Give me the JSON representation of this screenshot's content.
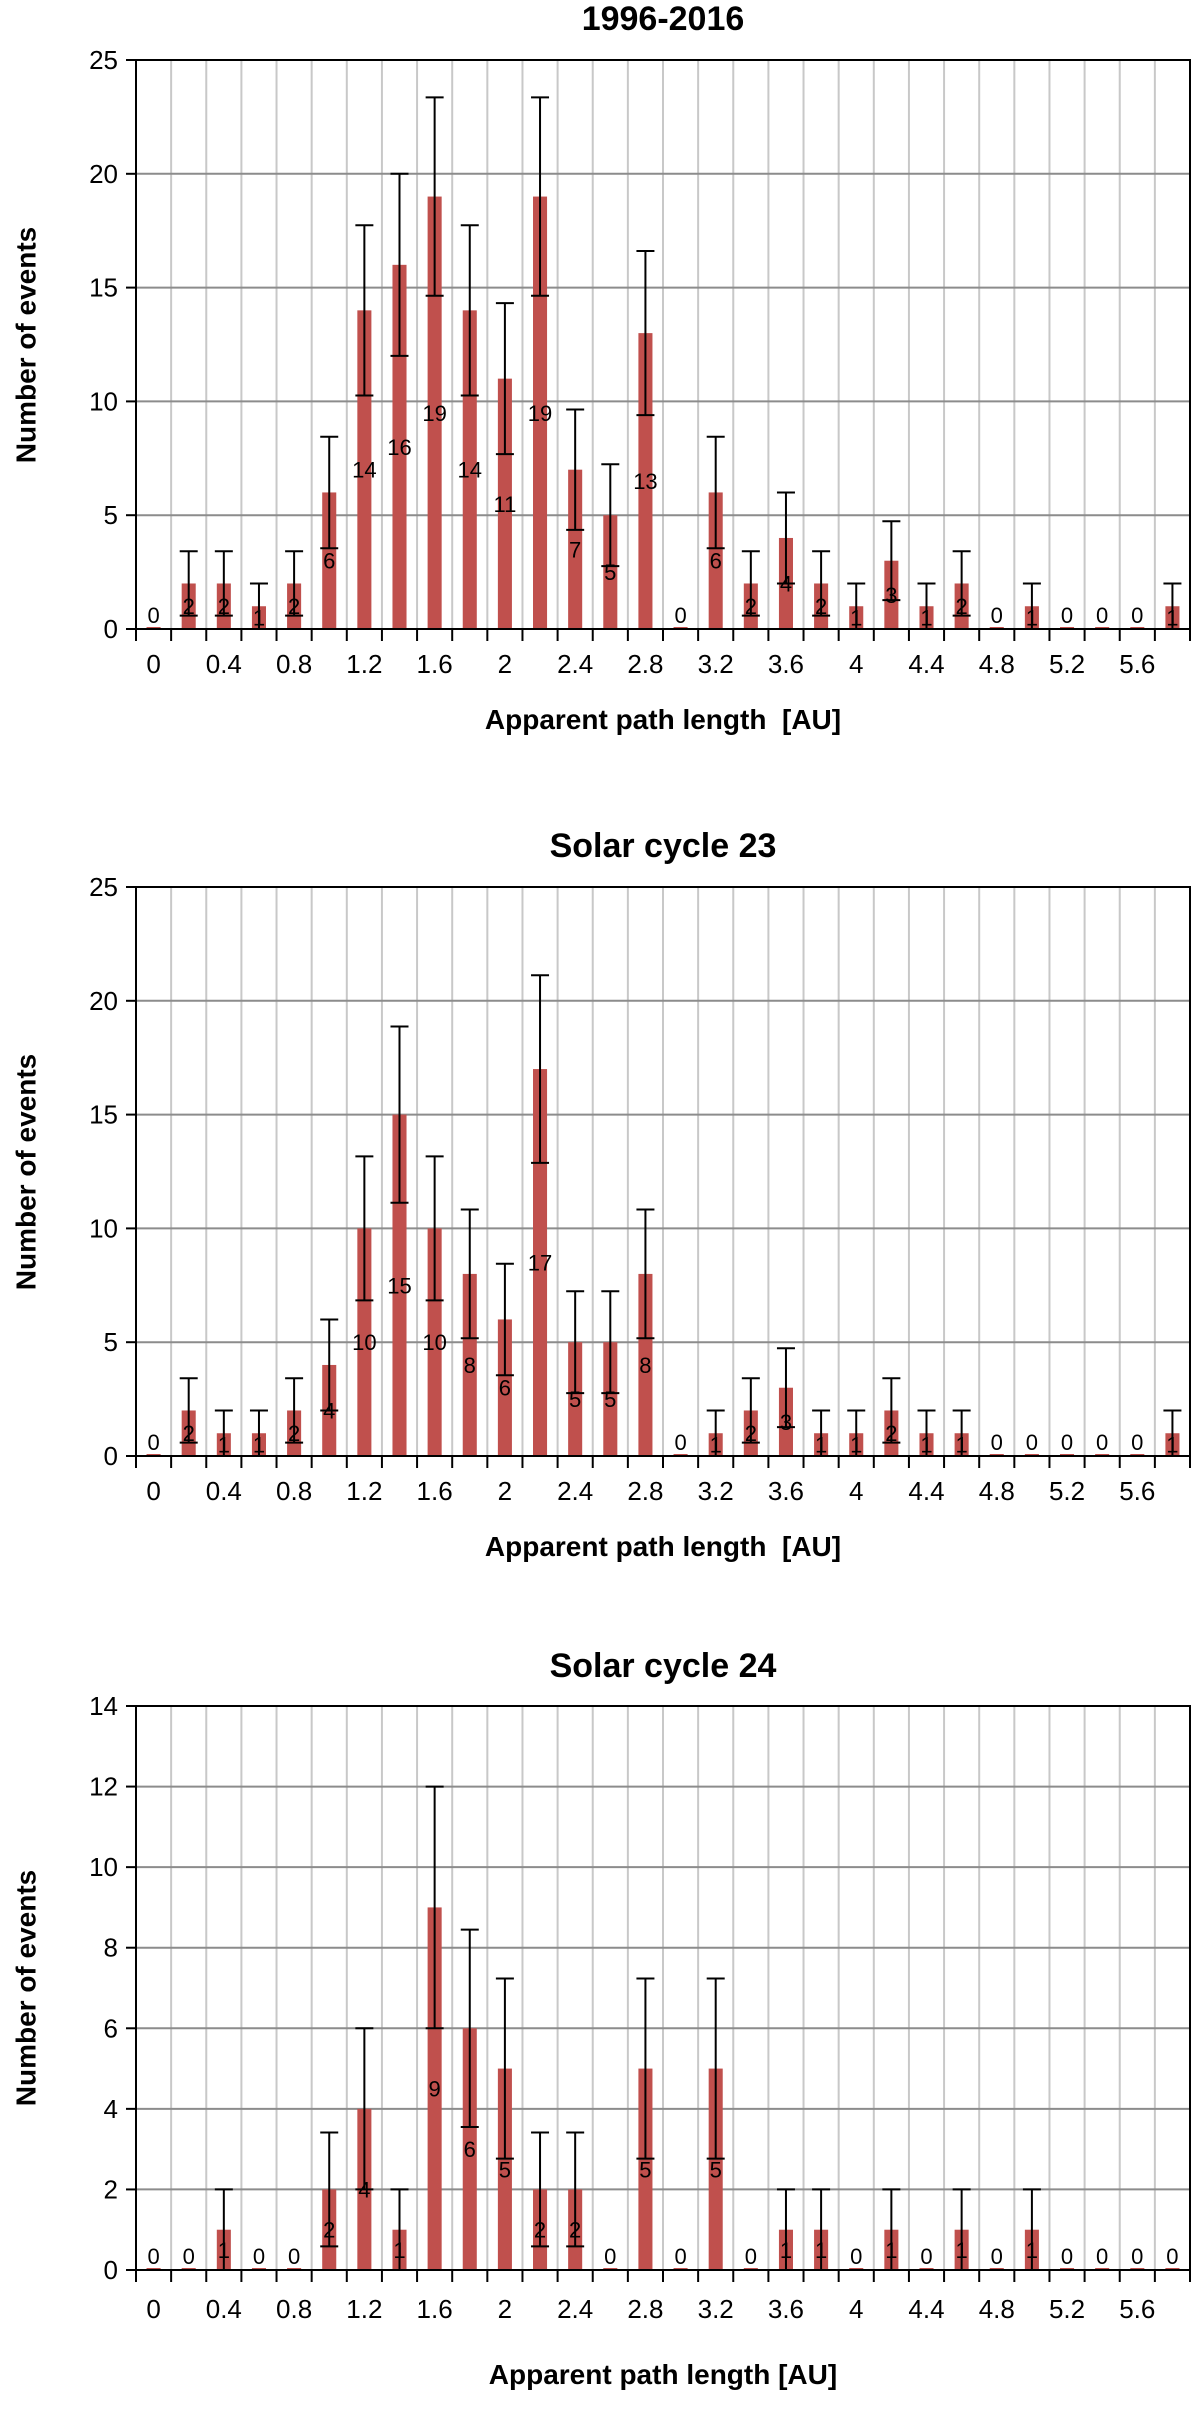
{
  "chart_data": [
    {
      "type": "bar",
      "title": "1996-2016",
      "xlabel": "Apparent path length  [AU]",
      "ylabel": "Number of events",
      "ylim": [
        0,
        25
      ],
      "yticks": [
        0,
        5,
        10,
        15,
        20,
        25
      ],
      "xtick_labels": [
        "0",
        "0.4",
        "0.8",
        "1.2",
        "1.6",
        "2",
        "2.4",
        "2.8",
        "3.2",
        "3.6",
        "4",
        "4.4",
        "4.8",
        "5.2",
        "5.6"
      ],
      "grid": true,
      "bar_color": "#c0504d",
      "bins": [
        0,
        0.2,
        0.4,
        0.6,
        0.8,
        1.0,
        1.2,
        1.4,
        1.6,
        1.8,
        2.0,
        2.2,
        2.4,
        2.6,
        2.8,
        3.0,
        3.2,
        3.4,
        3.6,
        3.8,
        4.0,
        4.2,
        4.4,
        4.6,
        4.8,
        5.0,
        5.2,
        5.4,
        5.6,
        5.8
      ],
      "values": [
        0,
        2,
        2,
        1,
        2,
        6,
        14,
        16,
        19,
        14,
        11,
        19,
        7,
        5,
        13,
        0,
        6,
        2,
        4,
        2,
        1,
        3,
        1,
        2,
        0,
        1,
        0,
        0,
        0,
        1
      ],
      "error_bars": "sqrt(N)"
    },
    {
      "type": "bar",
      "title": "Solar cycle 23",
      "xlabel": "Apparent path length  [AU]",
      "ylabel": "Number of events",
      "ylim": [
        0,
        25
      ],
      "yticks": [
        0,
        5,
        10,
        15,
        20,
        25
      ],
      "xtick_labels": [
        "0",
        "0.4",
        "0.8",
        "1.2",
        "1.6",
        "2",
        "2.4",
        "2.8",
        "3.2",
        "3.6",
        "4",
        "4.4",
        "4.8",
        "5.2",
        "5.6"
      ],
      "grid": true,
      "bar_color": "#c0504d",
      "bins": [
        0,
        0.2,
        0.4,
        0.6,
        0.8,
        1.0,
        1.2,
        1.4,
        1.6,
        1.8,
        2.0,
        2.2,
        2.4,
        2.6,
        2.8,
        3.0,
        3.2,
        3.4,
        3.6,
        3.8,
        4.0,
        4.2,
        4.4,
        4.6,
        4.8,
        5.0,
        5.2,
        5.4,
        5.6,
        5.8
      ],
      "values": [
        0,
        2,
        1,
        1,
        2,
        4,
        10,
        15,
        10,
        8,
        6,
        17,
        5,
        5,
        8,
        0,
        1,
        2,
        3,
        1,
        1,
        2,
        1,
        1,
        0,
        0,
        0,
        0,
        0,
        1
      ],
      "error_bars": "sqrt(N)"
    },
    {
      "type": "bar",
      "title": "Solar cycle 24",
      "xlabel": "Apparent path length [AU]",
      "ylabel": "Number of events",
      "ylim": [
        0,
        14
      ],
      "yticks": [
        0,
        2,
        4,
        6,
        8,
        10,
        12,
        14
      ],
      "xtick_labels": [
        "0",
        "0.4",
        "0.8",
        "1.2",
        "1.6",
        "2",
        "2.4",
        "2.8",
        "3.2",
        "3.6",
        "4",
        "4.4",
        "4.8",
        "5.2",
        "5.6"
      ],
      "grid": true,
      "bar_color": "#c0504d",
      "bins": [
        0,
        0.2,
        0.4,
        0.6,
        0.8,
        1.0,
        1.2,
        1.4,
        1.6,
        1.8,
        2.0,
        2.2,
        2.4,
        2.6,
        2.8,
        3.0,
        3.2,
        3.4,
        3.6,
        3.8,
        4.0,
        4.2,
        4.4,
        4.6,
        4.8,
        5.0,
        5.2,
        5.4,
        5.6,
        5.8
      ],
      "values": [
        0,
        0,
        1,
        0,
        0,
        2,
        4,
        1,
        9,
        6,
        5,
        2,
        2,
        0,
        5,
        0,
        5,
        0,
        1,
        1,
        0,
        1,
        0,
        1,
        0,
        1,
        0,
        0,
        0,
        0
      ],
      "error_bars": "sqrt(N)"
    }
  ]
}
